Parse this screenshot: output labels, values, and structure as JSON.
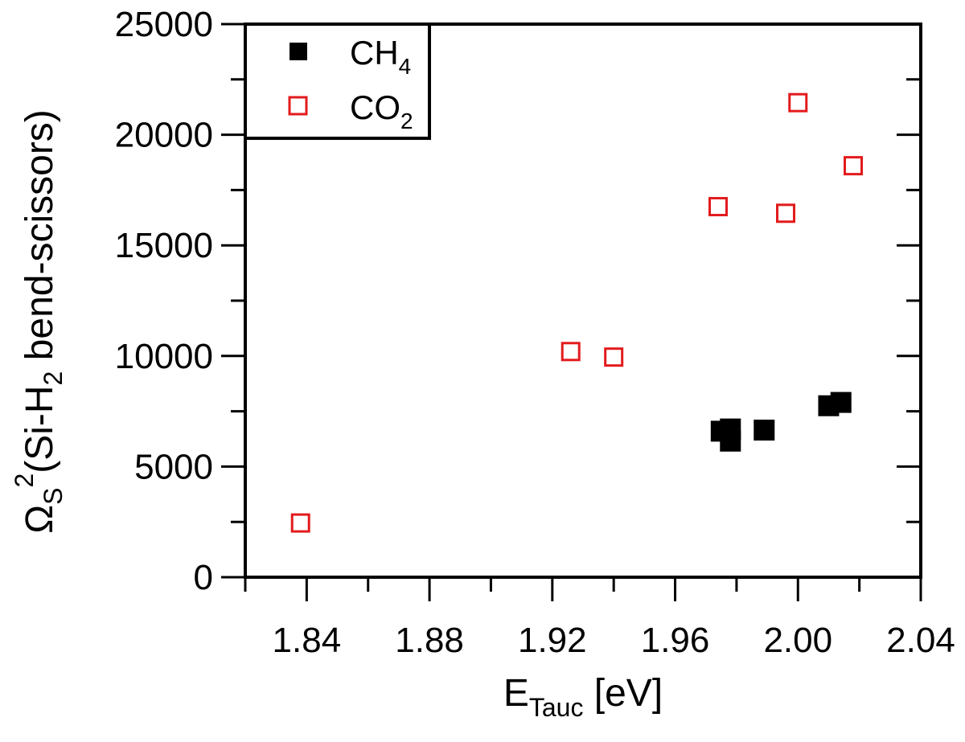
{
  "chart_data": {
    "type": "scatter",
    "xlabel": "E",
    "xlabel_sub": "Tauc",
    "xlabel_suffix": " [eV]",
    "ylabel_main": "Ω",
    "ylabel_sub": "S",
    "ylabel_sup": "2",
    "ylabel_mid": "(Si-H",
    "ylabel_sub2": "2",
    "ylabel_end": " bend-scissors)",
    "xlim": [
      1.82,
      2.04
    ],
    "ylim": [
      0,
      25000
    ],
    "x_ticks": [
      1.84,
      1.88,
      1.92,
      1.96,
      2.0,
      2.04
    ],
    "x_tick_labels": [
      "1.84",
      "1.88",
      "1.92",
      "1.96",
      "2.00",
      "2.04"
    ],
    "y_ticks": [
      0,
      5000,
      10000,
      15000,
      20000,
      25000
    ],
    "y_tick_labels": [
      "0",
      "5000",
      "10000",
      "15000",
      "20000",
      "25000"
    ],
    "legend_position": "top-left",
    "series": [
      {
        "name": "CH",
        "name_sub": "4",
        "marker": "filled-square",
        "color": "#000000",
        "points": [
          {
            "x": 1.975,
            "y": 6600
          },
          {
            "x": 1.978,
            "y": 6700
          },
          {
            "x": 1.978,
            "y": 6150
          },
          {
            "x": 1.989,
            "y": 6650
          },
          {
            "x": 2.01,
            "y": 7750
          },
          {
            "x": 2.014,
            "y": 7900
          }
        ]
      },
      {
        "name": "CO",
        "name_sub": "2",
        "marker": "open-square",
        "color": "#e31a1c",
        "points": [
          {
            "x": 1.838,
            "y": 2450
          },
          {
            "x": 1.926,
            "y": 10200
          },
          {
            "x": 1.94,
            "y": 9950
          },
          {
            "x": 1.974,
            "y": 16750
          },
          {
            "x": 1.996,
            "y": 16450
          },
          {
            "x": 2.0,
            "y": 21450
          },
          {
            "x": 2.018,
            "y": 18600
          }
        ]
      }
    ]
  }
}
